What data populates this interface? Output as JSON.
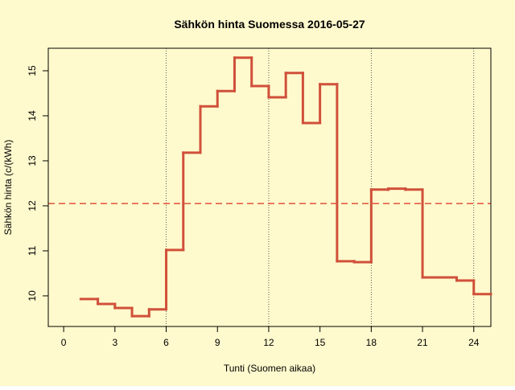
{
  "chart_data": {
    "type": "step",
    "title": "Sähkön hinta Suomessa 2016-05-27",
    "x_label": "Tunti (Suomen aikaa)",
    "y_label": "Sähkön hinta (c/(kWh)",
    "x": [
      1,
      2,
      3,
      4,
      5,
      6,
      7,
      8,
      9,
      10,
      11,
      12,
      13,
      14,
      15,
      16,
      17,
      18,
      19,
      20,
      21,
      22,
      23,
      24,
      25
    ],
    "values": [
      9.93,
      9.82,
      9.73,
      9.55,
      9.7,
      11.02,
      13.18,
      14.21,
      14.55,
      15.29,
      14.66,
      14.41,
      14.95,
      13.84,
      14.7,
      10.77,
      10.75,
      12.36,
      12.38,
      12.36,
      10.41,
      10.41,
      10.34,
      10.04,
      10.04
    ],
    "color": "#d0503a",
    "xlim": [
      -0.9,
      25
    ],
    "ylim": [
      9.32,
      15.5
    ],
    "xticks": [
      0,
      3,
      6,
      9,
      12,
      15,
      18,
      21,
      24
    ],
    "yticks": [
      10,
      11,
      12,
      13,
      14,
      15
    ],
    "mean_line": {
      "value": 12.05,
      "color": "#e0503a"
    },
    "vlines": [
      6,
      12,
      18,
      24
    ],
    "background": "#fffacd"
  }
}
